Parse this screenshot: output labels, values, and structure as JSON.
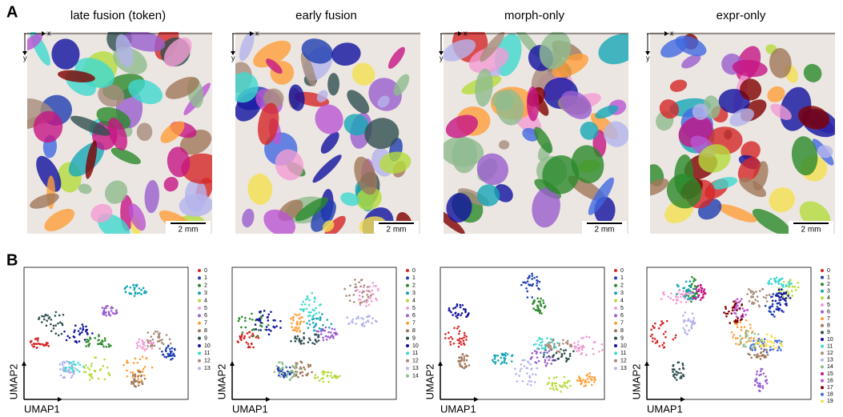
{
  "panel_a": {
    "label": "A",
    "panels": [
      {
        "title": "late fusion (token)",
        "x_axis": "x",
        "y_axis": "y",
        "scale_bar": "2 mm"
      },
      {
        "title": "early fusion",
        "x_axis": "x",
        "y_axis": "y",
        "scale_bar": "2 mm"
      },
      {
        "title": "morph-only",
        "x_axis": "x",
        "y_axis": "y",
        "scale_bar": "2 mm"
      },
      {
        "title": "expr-only",
        "x_axis": "x",
        "y_axis": "y",
        "scale_bar": "2 mm"
      }
    ]
  },
  "panel_b": {
    "label": "B",
    "palette": [
      "#d62728",
      "#1f3fb0",
      "#2a8a2a",
      "#17a7b8",
      "#b5dc3c",
      "#f29cd3",
      "#9a5fd0",
      "#ff9f3a",
      "#a0785a",
      "#2f4f4f",
      "#1212a0",
      "#40d8d0",
      "#a88c7c",
      "#b4b4ec",
      "#8fbc8f",
      "#c71585",
      "#ba55d3",
      "#800000",
      "#4169e1",
      "#f5e050"
    ],
    "plots": [
      {
        "x_label": "UMAP1",
        "y_label": "UMAP2",
        "legend": [
          "0",
          "1",
          "2",
          "3",
          "4",
          "5",
          "6",
          "7",
          "8",
          "9",
          "10",
          "11",
          "12",
          "13"
        ]
      },
      {
        "x_label": "UMAP1",
        "y_label": "UMAP2",
        "legend": [
          "0",
          "1",
          "2",
          "3",
          "4",
          "5",
          "6",
          "7",
          "8",
          "9",
          "10",
          "11",
          "12",
          "13",
          "14"
        ]
      },
      {
        "x_label": "UMAP1",
        "y_label": "UMAP2",
        "legend": [
          "0",
          "1",
          "2",
          "3",
          "4",
          "5",
          "6",
          "7",
          "8",
          "9",
          "10",
          "11",
          "12",
          "13"
        ]
      },
      {
        "x_label": "UMAP1",
        "y_label": "UMAP2",
        "legend": [
          "0",
          "1",
          "2",
          "3",
          "4",
          "5",
          "6",
          "7",
          "8",
          "9",
          "10",
          "11",
          "12",
          "13",
          "14",
          "15",
          "16",
          "17",
          "18",
          "19"
        ]
      }
    ]
  }
}
